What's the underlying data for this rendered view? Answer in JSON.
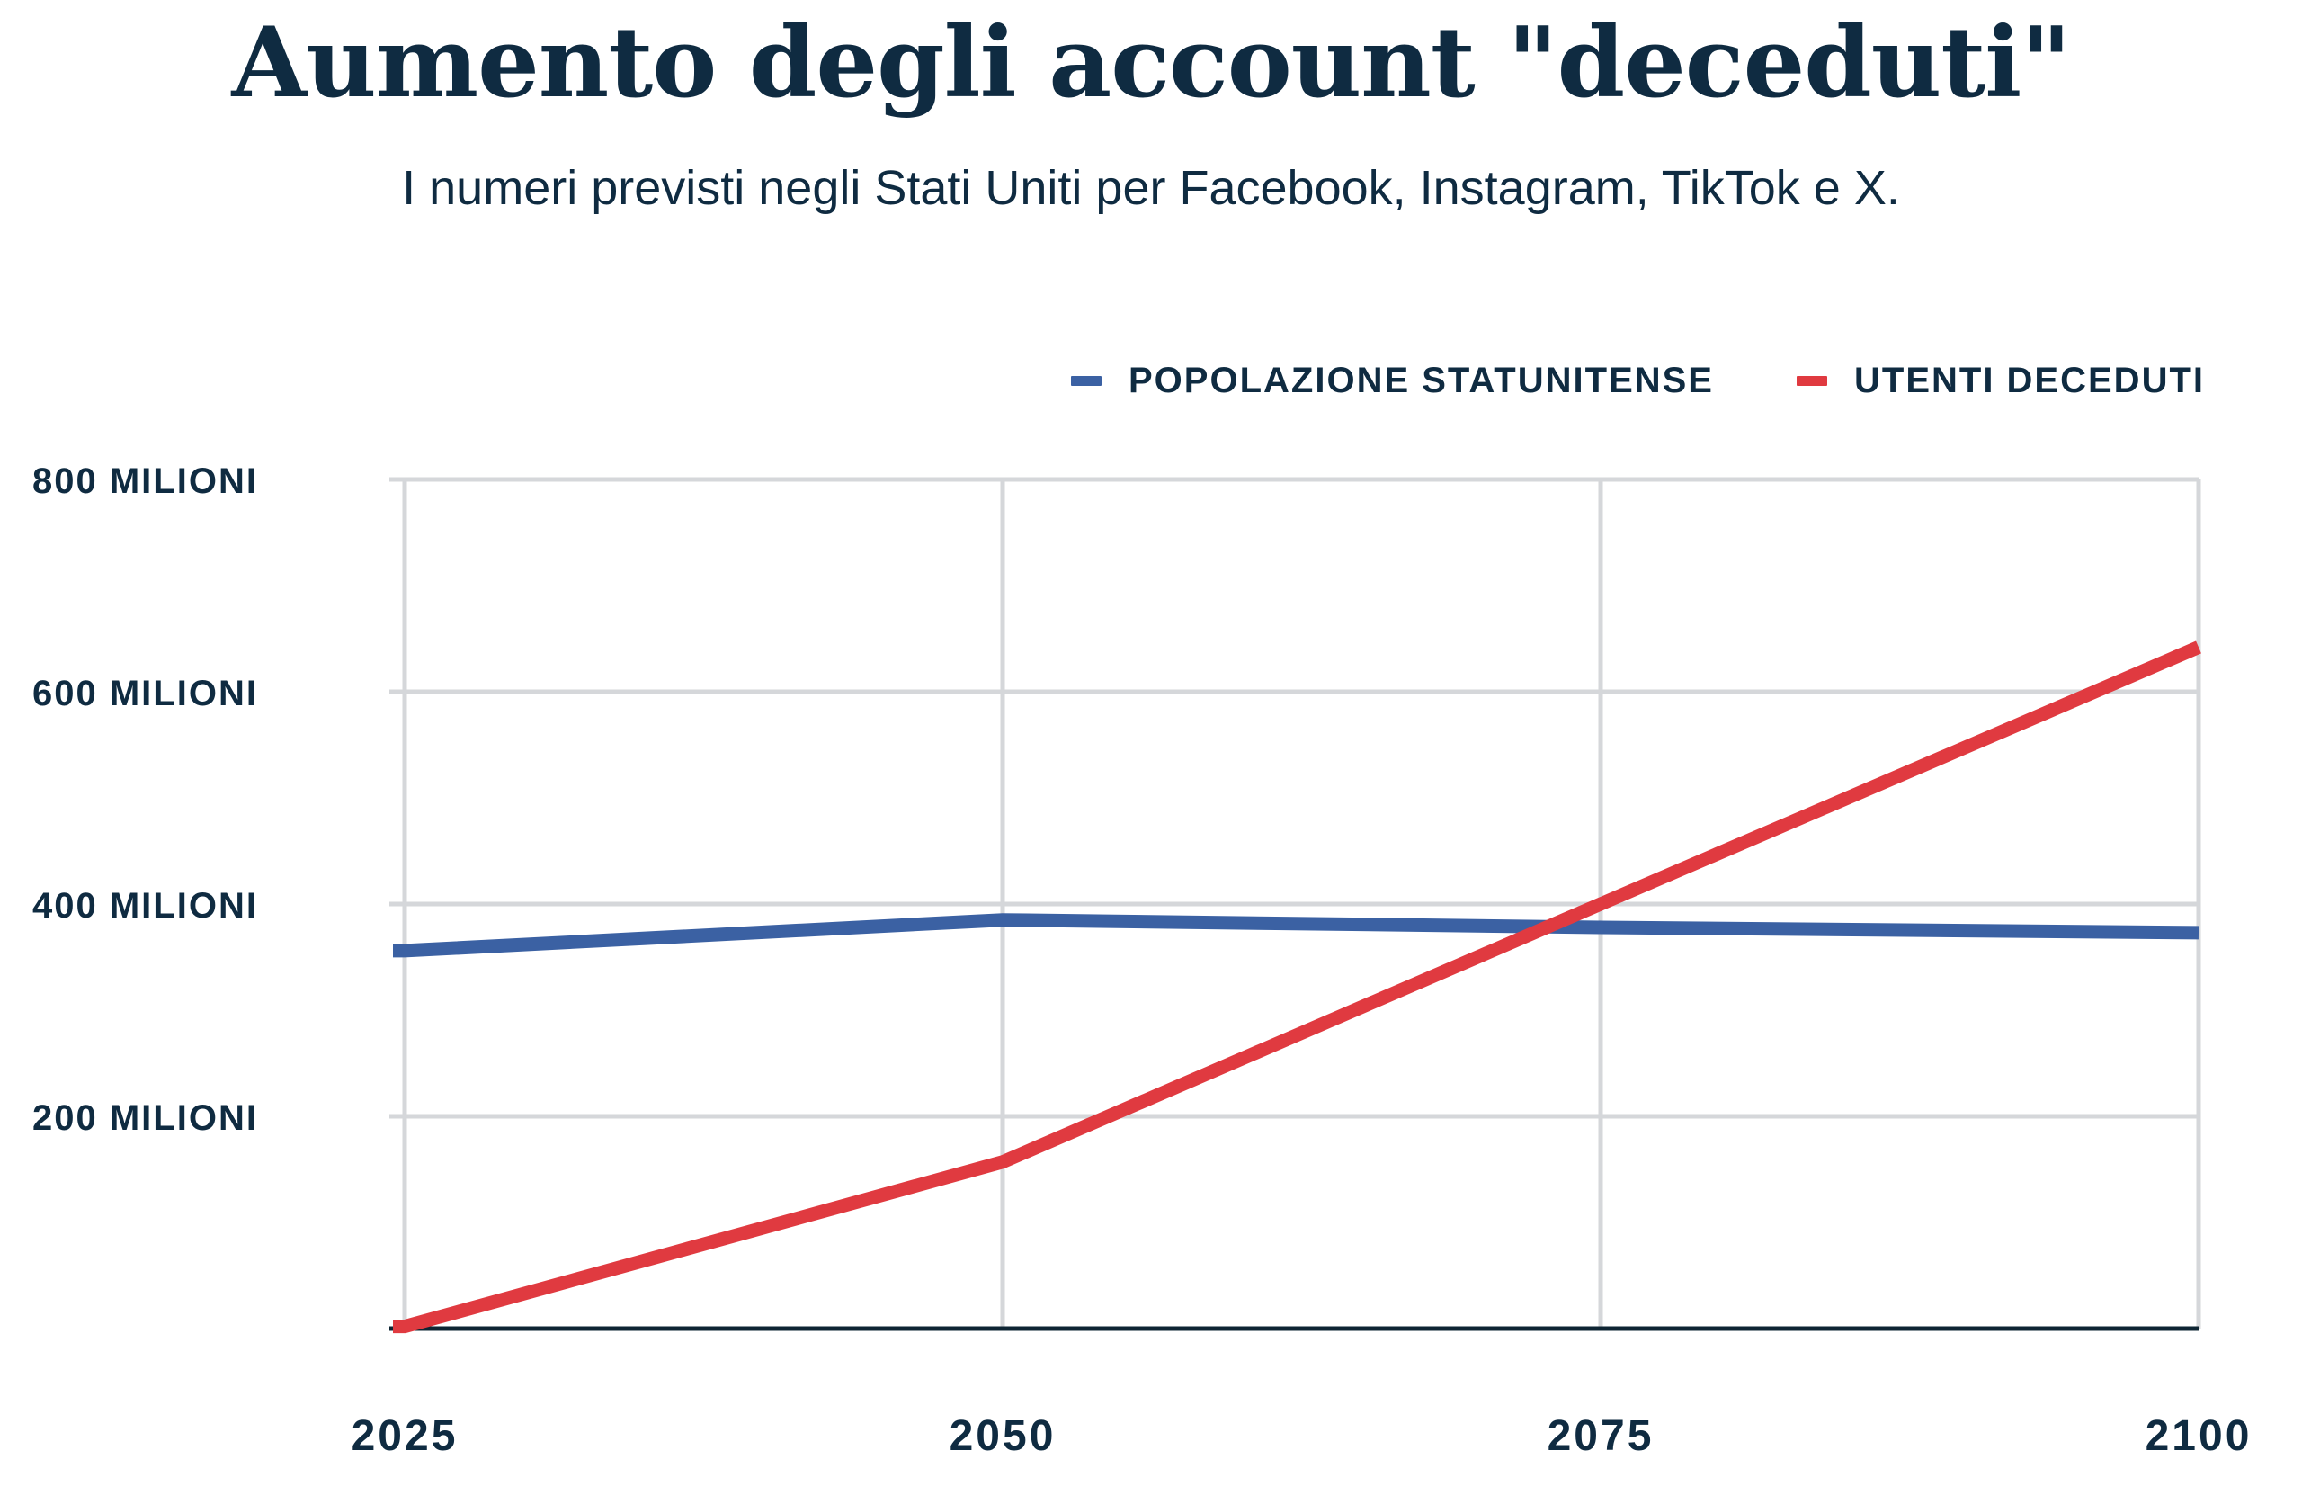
{
  "title": "Aumento degli account \"deceduti\"",
  "subtitle": "I numeri previsti negli Stati Uniti per Facebook, Instagram, TikTok e X.",
  "legend": {
    "items": [
      {
        "label": "POPOLAZIONE STATUNITENSE",
        "color": "#3b61a3"
      },
      {
        "label": "UTENTI DECEDUTI",
        "color": "#e03a40"
      }
    ]
  },
  "colors": {
    "text_navy": "#0f2b41",
    "axis_line": "#0e2533",
    "gridline": "#d5d7da",
    "background": "#ffffff",
    "population_line": "#3b61a3",
    "deceased_line": "#e03a40"
  },
  "chart_data": {
    "type": "line",
    "title": "Aumento degli account \"deceduti\"",
    "subtitle": "I numeri previsti negli Stati Uniti per Facebook, Instagram, TikTok e X.",
    "unit": "milioni",
    "x": [
      2025,
      2050,
      2075,
      2100
    ],
    "x_tick_labels": [
      "2025",
      "2050",
      "2075",
      "2100"
    ],
    "ylim": [
      0,
      800
    ],
    "y_tick_values": [
      200,
      400,
      600,
      800
    ],
    "y_tick_labels": [
      "200 MILIONI",
      "400 MILIONI",
      "600 MILIONI",
      "800 MILIONI"
    ],
    "grid": true,
    "legend_position": "top-right",
    "series": [
      {
        "name": "POPOLAZIONE STATUNITENSE",
        "key": "population",
        "color": "#3b61a3",
        "values": [
          356,
          385,
          378,
          373
        ]
      },
      {
        "name": "UTENTI DECEDUTI",
        "key": "deceased",
        "color": "#e03a40",
        "values": [
          2,
          157,
          400,
          642
        ]
      }
    ]
  }
}
